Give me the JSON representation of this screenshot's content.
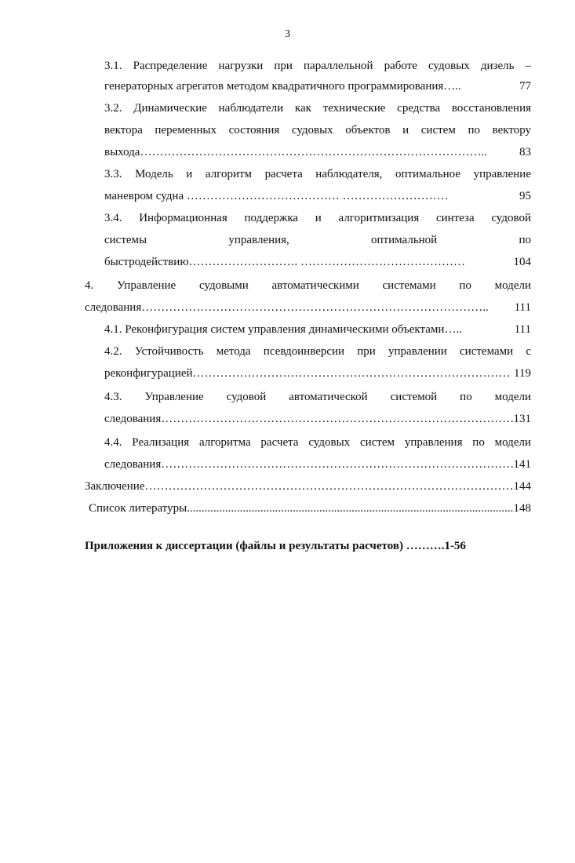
{
  "page_number": "3",
  "entries": [
    {
      "lines": [
        "3.1.  Распределение нагрузки при параллельной работе судовых дизель –",
        {
          "text": "генераторных агрегатов методом квадратичного программирования…..",
          "page": "77"
        }
      ]
    },
    {
      "lines": [
        "3.2. Динамические наблюдатели как технические средства восстановления",
        "вектора переменных состояния судовых объектов и систем по вектору",
        {
          "text": "выхода……………………………………………………………………………..",
          "page": "83"
        }
      ]
    },
    {
      "lines": [
        "3.3. Модель и алгоритм расчета наблюдателя, оптимальное управление",
        {
          "text": "маневром судна ………………………………… ………………………",
          "page": "95"
        }
      ]
    },
    {
      "lines": [
        "3.4. Информационная поддержка и алгоритмизация синтеза судовой",
        "системы управления, оптимальной по",
        {
          "text": "быстродействию………………………. ……………………………………",
          "page": "104"
        }
      ]
    },
    {
      "lines": [
        "4. Управление судовыми автоматическими системами по модели",
        {
          "text": "следования……………………………………………………………………………..",
          "page": "111"
        }
      ]
    },
    {
      "lines": [
        {
          "text": "4.1. Реконфигурация систем управления динамическими объектами…..",
          "page": "111"
        }
      ]
    },
    {
      "lines": [
        "4.2. Устойчивость метода псевдоинверсии при управлении системами с",
        {
          "text": "реконфигурацией………………………………………………………………………",
          "page": "119"
        }
      ]
    },
    {
      "lines": [
        "4.3. Управление судовой автоматической системой по модели",
        {
          "text": "следования…………………………………………………………………………………",
          "page": "131"
        }
      ]
    },
    {
      "lines": [
        "4.4. Реализация алгоритма расчета судовых систем управления по модели",
        {
          "text": "следования…………………………………………………………………………………",
          "page": "141"
        }
      ]
    },
    {
      "lines": [
        {
          "text": "Заключение……………………………………………………………………………………..",
          "page": "144"
        }
      ]
    },
    {
      "lines": [
        {
          "text": "Список литературы......................................................................................................................................",
          "page": "148"
        }
      ]
    }
  ],
  "appendix": "Приложения  к диссертации (файлы и результаты расчетов) ……….1-56"
}
